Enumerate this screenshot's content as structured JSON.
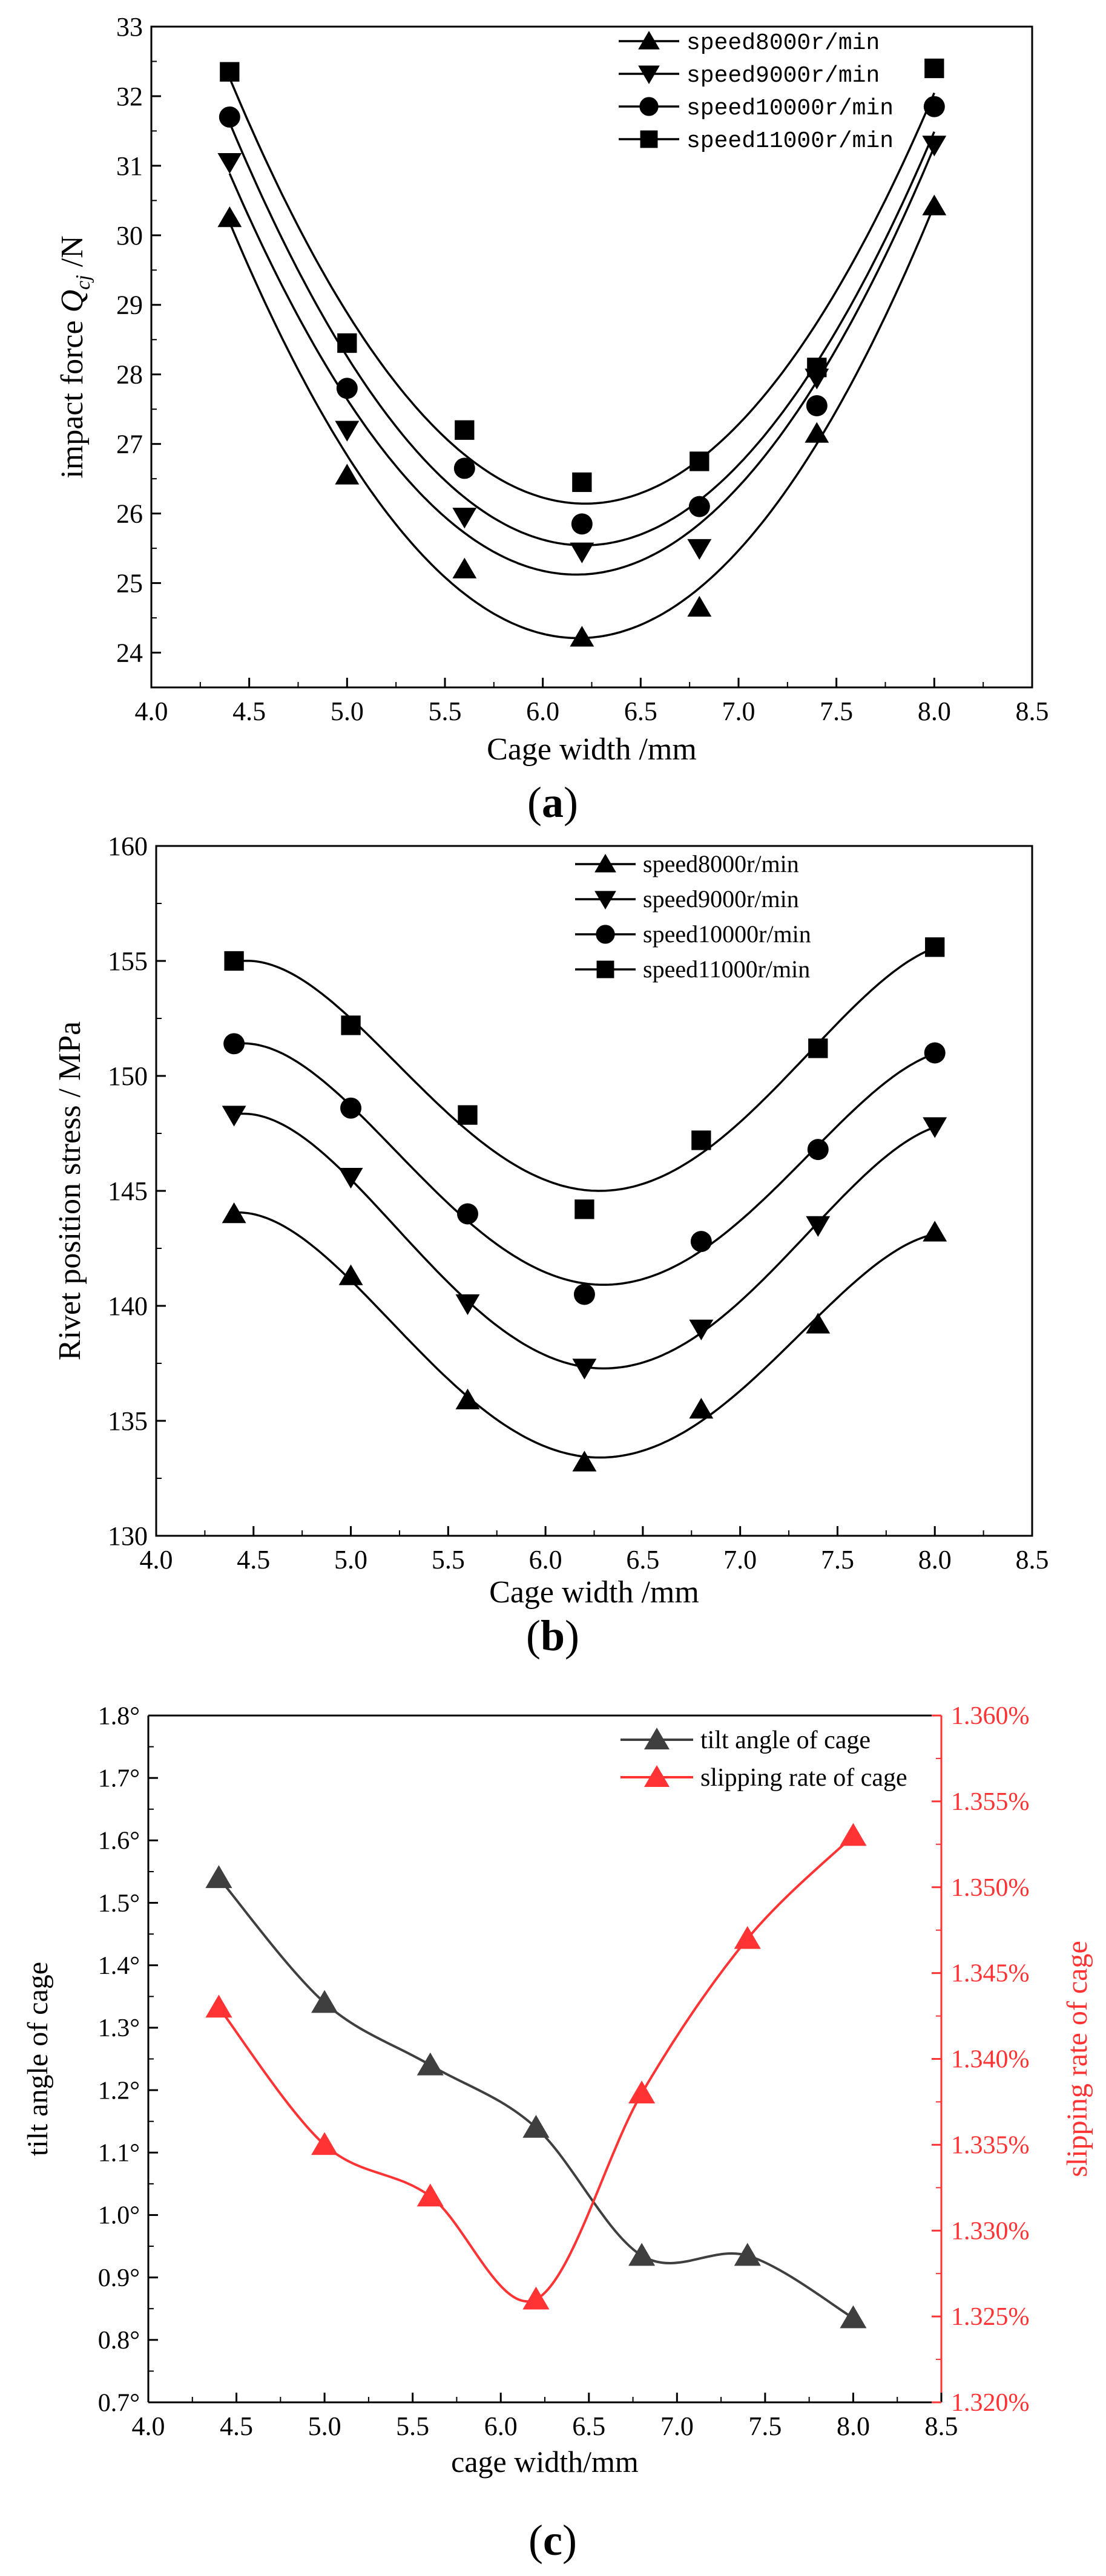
{
  "panels": {
    "a": {
      "caption_open": "(",
      "caption_letter": "a",
      "caption_close": ")"
    },
    "b": {
      "caption_open": "(",
      "caption_letter": "b",
      "caption_close": ")"
    },
    "c": {
      "caption_open": "(",
      "caption_letter": "c",
      "caption_close": ")"
    }
  },
  "chart_data": [
    {
      "id": "a",
      "type": "scatter",
      "xlabel": "Cage width /mm",
      "ylabel_parts": [
        "impact force ",
        "Q",
        "cj",
        " /N"
      ],
      "xlim": [
        4.0,
        8.5
      ],
      "ylim": [
        23.5,
        33
      ],
      "xticks": [
        4.0,
        4.5,
        5.0,
        5.5,
        6.0,
        6.5,
        7.0,
        7.5,
        8.0,
        8.5
      ],
      "xtick_labels": [
        "4.0",
        "4.5",
        "5.0",
        "5.5",
        "6.0",
        "6.5",
        "7.0",
        "7.5",
        "8.0",
        "8.5"
      ],
      "yticks": [
        24,
        25,
        26,
        27,
        28,
        29,
        30,
        31,
        32,
        33
      ],
      "ytick_labels": [
        "24",
        "25",
        "26",
        "27",
        "28",
        "29",
        "30",
        "31",
        "32",
        "33"
      ],
      "x": [
        4.4,
        5.0,
        5.6,
        6.2,
        6.8,
        7.4,
        8.0
      ],
      "fit": "quadratic",
      "legend_position": "top-right",
      "series": [
        {
          "name": "speed8000r/min",
          "marker": "triangle-up",
          "values": [
            30.25,
            26.55,
            25.2,
            24.22,
            24.65,
            27.15,
            30.42
          ]
        },
        {
          "name": "speed9000r/min",
          "marker": "triangle-down",
          "values": [
            31.05,
            27.2,
            25.95,
            25.45,
            25.5,
            27.95,
            31.3
          ]
        },
        {
          "name": "speed10000r/min",
          "marker": "circle",
          "values": [
            31.7,
            27.8,
            26.65,
            25.85,
            26.1,
            27.55,
            31.85
          ]
        },
        {
          "name": "speed11000r/min",
          "marker": "square",
          "values": [
            32.35,
            28.45,
            27.2,
            26.45,
            26.75,
            28.1,
            32.4
          ]
        }
      ]
    },
    {
      "id": "b",
      "type": "scatter",
      "xlabel": "Cage width /mm",
      "ylabel": "Rivet position stress / MPa",
      "xlim": [
        4.0,
        8.5
      ],
      "ylim": [
        130,
        160
      ],
      "xticks": [
        4.0,
        4.5,
        5.0,
        5.5,
        6.0,
        6.5,
        7.0,
        7.5,
        8.0,
        8.5
      ],
      "xtick_labels": [
        "4.0",
        "4.5",
        "5.0",
        "5.5",
        "6.0",
        "6.5",
        "7.0",
        "7.5",
        "8.0",
        "8.5"
      ],
      "yticks": [
        130,
        135,
        140,
        145,
        150,
        155,
        160
      ],
      "ytick_labels": [
        "130",
        "135",
        "140",
        "145",
        "150",
        "155",
        "160"
      ],
      "x": [
        4.4,
        5.0,
        5.6,
        6.2,
        6.8,
        7.4,
        8.0
      ],
      "fit": "quartic",
      "legend_position": "top-right",
      "series": [
        {
          "name": "speed8000r/min",
          "marker": "triangle-up",
          "values": [
            144.0,
            141.3,
            135.9,
            133.2,
            135.5,
            139.2,
            143.2
          ]
        },
        {
          "name": "speed9000r/min",
          "marker": "triangle-down",
          "values": [
            148.3,
            145.6,
            140.1,
            137.3,
            139.0,
            143.5,
            147.8
          ]
        },
        {
          "name": "speed10000r/min",
          "marker": "circle",
          "values": [
            151.4,
            148.6,
            144.0,
            140.5,
            142.8,
            146.8,
            151.0
          ]
        },
        {
          "name": "speed11000r/min",
          "marker": "square",
          "values": [
            155.0,
            152.2,
            148.3,
            144.2,
            147.2,
            151.2,
            155.6
          ]
        }
      ]
    },
    {
      "id": "c",
      "type": "line",
      "xlabel": "cage width/mm",
      "ylabel": "tilt angle of cage",
      "ylabel_right": "slipping rate of cage",
      "xlim": [
        4.0,
        8.5
      ],
      "ylim": [
        0.7,
        1.8
      ],
      "ylim_right": [
        1.32,
        1.36
      ],
      "xticks": [
        4.0,
        4.5,
        5.0,
        5.5,
        6.0,
        6.5,
        7.0,
        7.5,
        8.0,
        8.5
      ],
      "xtick_labels": [
        "4.0",
        "4.5",
        "5.0",
        "5.5",
        "6.0",
        "6.5",
        "7.0",
        "7.5",
        "8.0",
        "8.5"
      ],
      "yticks": [
        0.7,
        0.8,
        0.9,
        1.0,
        1.1,
        1.2,
        1.3,
        1.4,
        1.5,
        1.6,
        1.7,
        1.8
      ],
      "ytick_labels": [
        "0.7°",
        "0.8°",
        "0.9°",
        "1.0°",
        "1.1°",
        "1.2°",
        "1.3°",
        "1.4°",
        "1.5°",
        "1.6°",
        "1.7°",
        "1.8°"
      ],
      "yticks_right": [
        1.32,
        1.325,
        1.33,
        1.335,
        1.34,
        1.345,
        1.35,
        1.355,
        1.36
      ],
      "ytick_labels_right": [
        "1.320%",
        "1.325%",
        "1.330%",
        "1.335%",
        "1.340%",
        "1.345%",
        "1.350%",
        "1.355%",
        "1.360%"
      ],
      "x": [
        4.4,
        5.0,
        5.6,
        6.2,
        6.8,
        7.4,
        8.0
      ],
      "legend_position": "top-right",
      "series": [
        {
          "name": "tilt angle of cage",
          "axis": "left",
          "color": "#3f3f3f",
          "marker": "triangle-up",
          "values": [
            1.54,
            1.34,
            1.24,
            1.14,
            0.935,
            0.935,
            0.835
          ]
        },
        {
          "name": "slipping rate of cage",
          "axis": "right",
          "color": "#ff3333",
          "marker": "triangle-up",
          "values": [
            1.343,
            1.335,
            1.332,
            1.326,
            1.338,
            1.347,
            1.353
          ]
        }
      ]
    }
  ]
}
